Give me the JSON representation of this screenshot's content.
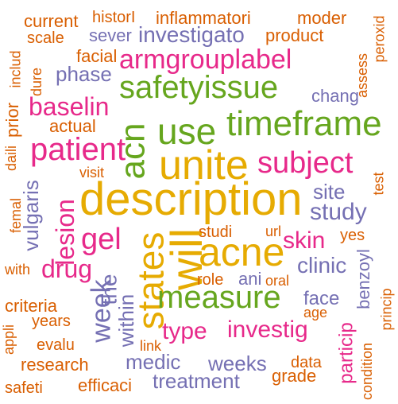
{
  "palette": {
    "yellow": "#e6ab02",
    "green": "#66a61e",
    "pink": "#e7298a",
    "purple": "#7570b3",
    "orange": "#d95f02"
  },
  "words": [
    {
      "text": "description",
      "color": "#e6ab02"
    },
    {
      "text": "unite",
      "color": "#e6ab02"
    },
    {
      "text": "will",
      "color": "#e6ab02"
    },
    {
      "text": "states",
      "color": "#e6ab02"
    },
    {
      "text": "acne",
      "color": "#e6ab02"
    },
    {
      "text": "acn",
      "color": "#66a61e"
    },
    {
      "text": "use",
      "color": "#66a61e"
    },
    {
      "text": "timeframe",
      "color": "#66a61e"
    },
    {
      "text": "safetyissue",
      "color": "#66a61e"
    },
    {
      "text": "measure",
      "color": "#66a61e"
    },
    {
      "text": "armgrouplabel",
      "color": "#e7298a"
    },
    {
      "text": "patient",
      "color": "#e7298a"
    },
    {
      "text": "subject",
      "color": "#e7298a"
    },
    {
      "text": "baselin",
      "color": "#e7298a"
    },
    {
      "text": "lesion",
      "color": "#e7298a"
    },
    {
      "text": "gel",
      "color": "#e7298a"
    },
    {
      "text": "drug",
      "color": "#e7298a"
    },
    {
      "text": "skin",
      "color": "#e7298a"
    },
    {
      "text": "type",
      "color": "#e7298a"
    },
    {
      "text": "investig",
      "color": "#e7298a"
    },
    {
      "text": "particip",
      "color": "#e7298a"
    },
    {
      "text": "study",
      "color": "#7570b3"
    },
    {
      "text": "site",
      "color": "#7570b3"
    },
    {
      "text": "clinic",
      "color": "#7570b3"
    },
    {
      "text": "face",
      "color": "#7570b3"
    },
    {
      "text": "medic",
      "color": "#7570b3"
    },
    {
      "text": "weeks",
      "color": "#7570b3"
    },
    {
      "text": "treatment",
      "color": "#7570b3"
    },
    {
      "text": "week",
      "color": "#7570b3"
    },
    {
      "text": "within",
      "color": "#7570b3"
    },
    {
      "text": "the",
      "color": "#7570b3"
    },
    {
      "text": "vulgaris",
      "color": "#7570b3"
    },
    {
      "text": "investigato",
      "color": "#7570b3"
    },
    {
      "text": "sever",
      "color": "#7570b3"
    },
    {
      "text": "phase",
      "color": "#7570b3"
    },
    {
      "text": "chang",
      "color": "#7570b3"
    },
    {
      "text": "ani",
      "color": "#7570b3"
    },
    {
      "text": "benzoyl",
      "color": "#7570b3"
    },
    {
      "text": "inflammatori",
      "color": "#d95f02"
    },
    {
      "text": "product",
      "color": "#d95f02"
    },
    {
      "text": "facial",
      "color": "#d95f02"
    },
    {
      "text": "actual",
      "color": "#d95f02"
    },
    {
      "text": "studi",
      "color": "#d95f02"
    },
    {
      "text": "criteria",
      "color": "#d95f02"
    },
    {
      "text": "research",
      "color": "#d95f02"
    },
    {
      "text": "efficaci",
      "color": "#d95f02"
    },
    {
      "text": "yes",
      "color": "#d95f02"
    },
    {
      "text": "role",
      "color": "#d95f02"
    },
    {
      "text": "moder",
      "color": "#d95f02"
    },
    {
      "text": "grade",
      "color": "#d95f02"
    },
    {
      "text": "current",
      "color": "#d95f02"
    },
    {
      "text": "historI",
      "color": "#d95f02"
    },
    {
      "text": "scale",
      "color": "#d95f02"
    },
    {
      "text": "prior",
      "color": "#d95f02"
    },
    {
      "text": "includ",
      "color": "#d95f02"
    },
    {
      "text": "dure",
      "color": "#d95f02"
    },
    {
      "text": "daili",
      "color": "#d95f02"
    },
    {
      "text": "visit",
      "color": "#d95f02"
    },
    {
      "text": "femal",
      "color": "#d95f02"
    },
    {
      "text": "with",
      "color": "#d95f02"
    },
    {
      "text": "years",
      "color": "#d95f02"
    },
    {
      "text": "evalu",
      "color": "#d95f02"
    },
    {
      "text": "appli",
      "color": "#d95f02"
    },
    {
      "text": "safeti",
      "color": "#d95f02"
    },
    {
      "text": "link",
      "color": "#d95f02"
    },
    {
      "text": "url",
      "color": "#d95f02"
    },
    {
      "text": "oral",
      "color": "#d95f02"
    },
    {
      "text": "age",
      "color": "#d95f02"
    },
    {
      "text": "data",
      "color": "#d95f02"
    },
    {
      "text": "condition",
      "color": "#d95f02"
    },
    {
      "text": "princip",
      "color": "#d95f02"
    },
    {
      "text": "test",
      "color": "#d95f02"
    },
    {
      "text": "peroxid",
      "color": "#d95f02"
    },
    {
      "text": "assess",
      "color": "#d95f02"
    }
  ]
}
